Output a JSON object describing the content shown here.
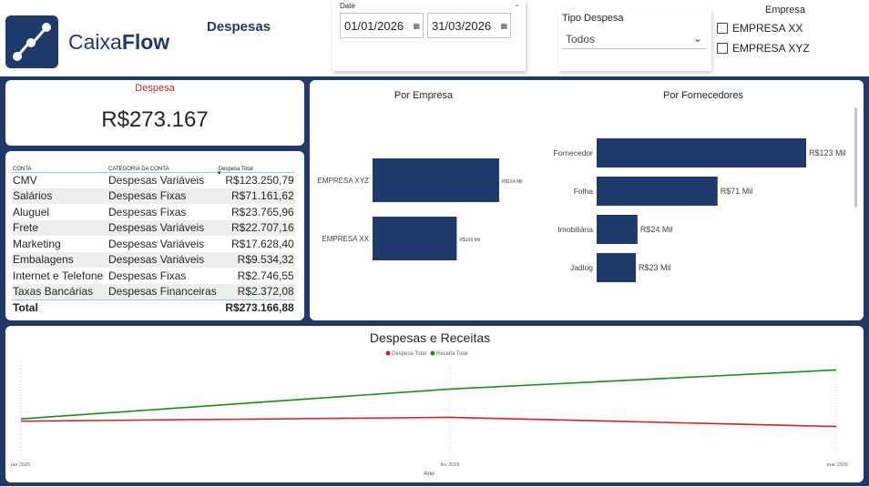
{
  "header": {
    "logo_text_light": "Caixa",
    "logo_text_bold": "Flow",
    "page_title": "Despesas"
  },
  "date_filter": {
    "label": "Date",
    "start": "01/01/2026",
    "end": "31/03/2026"
  },
  "tipo_filter": {
    "label": "Tipo Despesa",
    "selected": "Todos"
  },
  "empresa_filter": {
    "title": "Empresa",
    "options": [
      "EMPRESA XX",
      "EMPRESA XYZ"
    ]
  },
  "kpi": {
    "label": "Despesa",
    "value": "R$273.167"
  },
  "table": {
    "headers": [
      "CONTA",
      "CATEGORIA DA CONTA",
      "Despesa Total"
    ],
    "rows": [
      [
        "CMV",
        "Despesas Variáveis",
        "R$123.250,79"
      ],
      [
        "Salários",
        "Despesas Fixas",
        "R$71.161,62"
      ],
      [
        "Aluguel",
        "Despesas Fixas",
        "R$23.765,96"
      ],
      [
        "Frete",
        "Despesas Variáveis",
        "R$22.707,16"
      ],
      [
        "Marketing",
        "Despesas Variáveis",
        "R$17.628,40"
      ],
      [
        "Embalagens",
        "Despesas Variáveis",
        "R$9.534,32"
      ],
      [
        "Internet e Telefone",
        "Despesas Fixas",
        "R$2.746,55"
      ],
      [
        "Taxas Bancárias",
        "Despesas Financeiras",
        "R$2.372,08"
      ]
    ],
    "total_label": "Total",
    "total_value": "R$273.166,88"
  },
  "colors": {
    "navy": "#1e3a6b",
    "despesa": "#c8252a",
    "receita": "#1a8a1a"
  },
  "chart_data": [
    {
      "type": "bar",
      "orientation": "horizontal",
      "title": "Por Empresa",
      "categories": [
        "EMPRESA XYZ",
        "EMPRESA XX"
      ],
      "values": [
        164,
        109
      ],
      "labels": [
        "R$164 Mil",
        "R$109 Mil"
      ],
      "unit": "R$ Mil"
    },
    {
      "type": "bar",
      "orientation": "horizontal",
      "title": "Por Fornecedores",
      "categories": [
        "Fornecedor",
        "Folha",
        "Imobiliária",
        "Jadlog"
      ],
      "values": [
        123,
        71,
        24,
        23
      ],
      "labels": [
        "R$123 Mil",
        "R$71 Mil",
        "R$24 Mil",
        "R$23 Mil"
      ],
      "unit": "R$ Mil"
    },
    {
      "type": "line",
      "title": "Despesas e Receitas",
      "xlabel": "Ano",
      "categories": [
        "jan 2026",
        "fev 2026",
        "mar 2026"
      ],
      "series": [
        {
          "name": "Despesa Total",
          "values": [
            96,
            106,
            82
          ]
        },
        {
          "name": "Receita Total",
          "values": [
            102,
            180,
            230
          ]
        }
      ]
    }
  ]
}
